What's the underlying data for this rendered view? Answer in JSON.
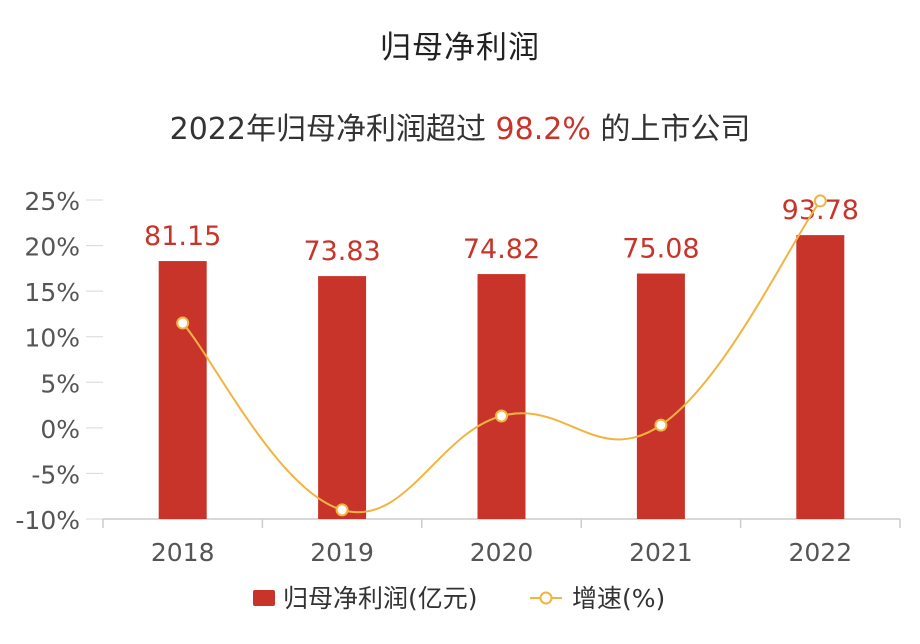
{
  "chart_data": {
    "type": "bar",
    "title": "归母净利润",
    "subtitle": {
      "prefix": "2022年归母净利润超过 ",
      "highlight": "98.2%",
      "suffix": " 的上市公司"
    },
    "categories": [
      "2018",
      "2019",
      "2020",
      "2021",
      "2022"
    ],
    "series": [
      {
        "name": "归母净利润(亿元)",
        "type": "bar",
        "values": [
          81.15,
          73.83,
          74.82,
          75.08,
          93.78
        ],
        "value_labels": [
          "81.15",
          "73.83",
          "74.82",
          "75.08",
          "93.78"
        ],
        "color": "#c8342a"
      },
      {
        "name": "增速(%)",
        "type": "line",
        "smooth": true,
        "values": [
          11.5,
          -9.0,
          1.3,
          0.3,
          24.9
        ],
        "color": "#f2b441"
      }
    ],
    "yaxis": {
      "ticks": [
        25,
        20,
        15,
        10,
        5,
        0,
        -5,
        -10
      ],
      "tick_labels": [
        "25%",
        "20%",
        "15%",
        "10%",
        "5%",
        "0%",
        "-5%",
        "-10%"
      ],
      "range": [
        -10,
        25
      ]
    },
    "bar_scale_reference": {
      "value": 81.15,
      "plotted_as_percent": 18.3
    },
    "grid": false,
    "legend_position": "bottom"
  }
}
